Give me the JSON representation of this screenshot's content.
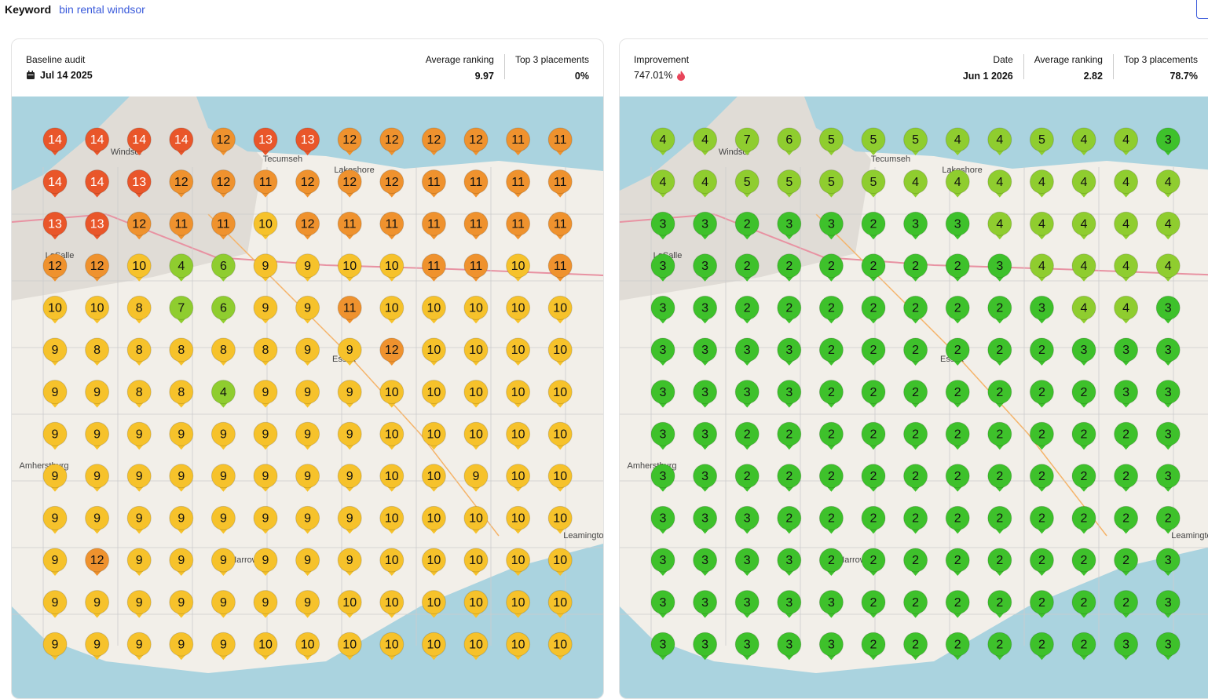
{
  "header": {
    "label": "Keyword",
    "keyword": "bin rental windsor"
  },
  "panels": [
    {
      "title": "Baseline audit",
      "date": "Jul 14 2025",
      "stats": [
        {
          "label": "Average ranking",
          "value": "9.97"
        },
        {
          "label": "Top 3 placements",
          "value": "0%"
        }
      ],
      "grid": [
        [
          14,
          14,
          14,
          14,
          12,
          13,
          13,
          12,
          12,
          12,
          12,
          11,
          11
        ],
        [
          14,
          14,
          13,
          12,
          12,
          11,
          12,
          12,
          12,
          11,
          11,
          11,
          11
        ],
        [
          13,
          13,
          12,
          11,
          11,
          10,
          12,
          11,
          11,
          11,
          11,
          11,
          11
        ],
        [
          12,
          12,
          10,
          4,
          6,
          9,
          9,
          10,
          10,
          11,
          11,
          10,
          11
        ],
        [
          10,
          10,
          8,
          7,
          6,
          9,
          9,
          11,
          10,
          10,
          10,
          10,
          10
        ],
        [
          9,
          8,
          8,
          8,
          8,
          8,
          9,
          9,
          12,
          10,
          10,
          10,
          10
        ],
        [
          9,
          9,
          8,
          8,
          4,
          9,
          9,
          9,
          10,
          10,
          10,
          10,
          10
        ],
        [
          9,
          9,
          9,
          9,
          9,
          9,
          9,
          9,
          10,
          10,
          10,
          10,
          10
        ],
        [
          9,
          9,
          9,
          9,
          9,
          9,
          9,
          9,
          10,
          10,
          9,
          10,
          10
        ],
        [
          9,
          9,
          9,
          9,
          9,
          9,
          9,
          9,
          10,
          10,
          10,
          10,
          10
        ],
        [
          9,
          12,
          9,
          9,
          9,
          9,
          9,
          9,
          10,
          10,
          10,
          10,
          10
        ],
        [
          9,
          9,
          9,
          9,
          9,
          9,
          9,
          10,
          10,
          10,
          10,
          10,
          10
        ],
        [
          9,
          9,
          9,
          9,
          9,
          10,
          10,
          10,
          10,
          10,
          10,
          10,
          10
        ]
      ]
    },
    {
      "title": "Improvement",
      "improvement": "747.01%",
      "stats": [
        {
          "label": "Date",
          "value": "Jun 1 2026"
        },
        {
          "label": "Average ranking",
          "value": "2.82"
        },
        {
          "label": "Top 3 placements",
          "value": "78.7%"
        }
      ],
      "grid": [
        [
          4,
          4,
          7,
          6,
          5,
          5,
          5,
          4,
          4,
          5,
          4,
          4,
          3
        ],
        [
          4,
          4,
          5,
          5,
          5,
          5,
          4,
          4,
          4,
          4,
          4,
          4,
          4
        ],
        [
          3,
          3,
          2,
          3,
          3,
          2,
          3,
          3,
          4,
          4,
          4,
          4,
          4
        ],
        [
          3,
          3,
          2,
          2,
          2,
          2,
          2,
          2,
          3,
          4,
          4,
          4,
          4
        ],
        [
          3,
          3,
          2,
          2,
          2,
          2,
          2,
          2,
          2,
          3,
          4,
          4,
          3
        ],
        [
          3,
          3,
          3,
          3,
          2,
          2,
          2,
          2,
          2,
          2,
          3,
          3,
          3
        ],
        [
          3,
          3,
          3,
          3,
          2,
          2,
          2,
          2,
          2,
          2,
          2,
          3,
          3
        ],
        [
          3,
          3,
          2,
          2,
          2,
          2,
          2,
          2,
          2,
          2,
          2,
          2,
          3
        ],
        [
          3,
          3,
          2,
          2,
          2,
          2,
          2,
          2,
          2,
          2,
          2,
          2,
          3
        ],
        [
          3,
          3,
          3,
          2,
          2,
          2,
          2,
          2,
          2,
          2,
          2,
          2,
          2
        ],
        [
          3,
          3,
          3,
          3,
          2,
          2,
          2,
          2,
          2,
          2,
          2,
          2,
          3
        ],
        [
          3,
          3,
          3,
          3,
          3,
          2,
          2,
          2,
          2,
          2,
          2,
          2,
          3
        ],
        [
          3,
          3,
          3,
          3,
          3,
          2,
          2,
          2,
          2,
          2,
          2,
          3,
          3
        ]
      ]
    }
  ],
  "map_labels": [
    "Windsor",
    "Tecumseh",
    "Lakeshore",
    "LaSalle",
    "Essex",
    "Amherstburg",
    "Harrow",
    "Leamington"
  ]
}
